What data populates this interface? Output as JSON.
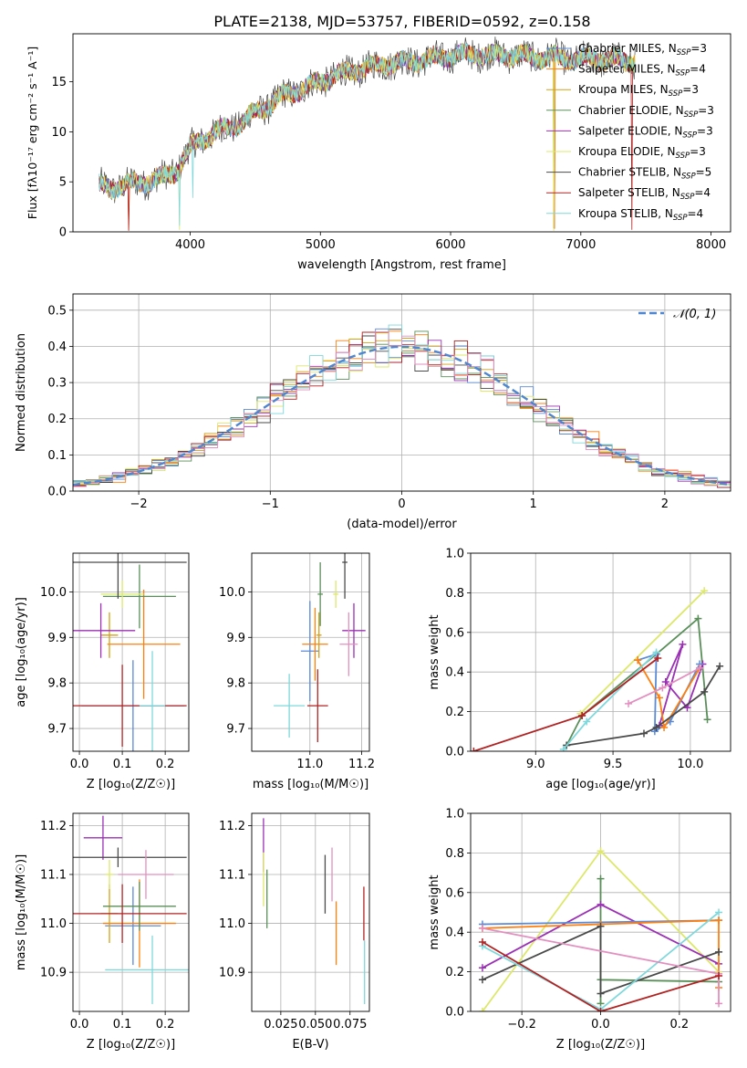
{
  "figure": {
    "title": "PLATE=2138, MJD=53757, FIBERID=0592, z=0.158"
  },
  "colors": {
    "Chabrier MILES": "#5b8bd6",
    "Salpeter MILES": "#ff7f0e",
    "Kroupa MILES": "#d4a017",
    "Chabrier ELODIE": "#5a8f5a",
    "Salpeter ELODIE": "#9b30b5",
    "Kroupa ELODIE": "#dde86a",
    "Chabrier STELIB": "#4a4a4a",
    "Salpeter STELIB": "#b22222",
    "Kroupa STELIB": "#7fd8dc",
    "pink": "#e38fc0",
    "gauss": "#4f86cf"
  },
  "chart_data": [
    {
      "id": "spectrum",
      "type": "line",
      "title": "PLATE=2138, MJD=53757, FIBERID=0592, z=0.158",
      "xlabel": "wavelength [Angstrom, rest frame]",
      "ylabel": "Flux [fλ10⁻¹⁷ erg cm⁻² s⁻¹ A⁻¹]",
      "xlim": [
        3100,
        8150
      ],
      "ylim": [
        0,
        19.8
      ],
      "xticks": [
        4000,
        5000,
        6000,
        7000,
        8000
      ],
      "yticks": [
        0,
        5,
        10,
        15
      ],
      "grid": false,
      "legend_position": "upper-right",
      "legend": [
        "Chabrier MILES, N_SSP=3",
        "Salpeter MILES, N_SSP=4",
        "Kroupa MILES, N_SSP=3",
        "Chabrier ELODIE, N_SSP=3",
        "Salpeter ELODIE, N_SSP=3",
        "Kroupa ELODIE, N_SSP=3",
        "Chabrier STELIB, N_SSP=5",
        "Salpeter STELIB, N_SSP=4",
        "Kroupa STELIB, N_SSP=4"
      ],
      "envelope": {
        "x": [
          3300,
          3400,
          3500,
          3600,
          3700,
          3800,
          3900,
          4000,
          4100,
          4200,
          4300,
          4400,
          4500,
          4600,
          4700,
          4800,
          4900,
          5000,
          5100,
          5200,
          5300,
          5400,
          5500,
          5600,
          5700,
          5800,
          5900,
          6000,
          6100,
          6200,
          6300,
          6400,
          6500,
          6600,
          6700,
          6800,
          6900,
          7000,
          7100,
          7200,
          7300,
          7400
        ],
        "y": [
          4.6,
          4.4,
          4.7,
          4.9,
          5.1,
          5.5,
          6.2,
          8.4,
          9.3,
          10.0,
          10.4,
          11.0,
          12.0,
          12.6,
          13.5,
          14.0,
          14.5,
          15.0,
          15.6,
          15.9,
          16.2,
          16.5,
          16.8,
          16.9,
          17.0,
          17.2,
          17.4,
          17.6,
          17.7,
          17.8,
          17.6,
          17.7,
          17.6,
          17.5,
          17.4,
          17.5,
          17.3,
          17.2,
          17.4,
          17.1,
          17.2,
          17.0
        ]
      }
    },
    {
      "id": "residuals",
      "type": "histogram",
      "xlabel": "(data-model)/error",
      "ylabel": "Normed distribution",
      "xlim": [
        -2.5,
        2.5
      ],
      "ylim": [
        0,
        0.545
      ],
      "xticks": [
        -2,
        -1,
        0,
        1,
        2
      ],
      "yticks": [
        0.0,
        0.1,
        0.2,
        0.3,
        0.4,
        0.5
      ],
      "grid": true,
      "legend": [
        "𝒩(0, 1)"
      ],
      "legend_position": "upper-right",
      "bin_width": 0.1,
      "gaussian": {
        "mean": 0,
        "sigma": 1
      }
    },
    {
      "id": "age-vs-Z",
      "type": "errorbar",
      "xlabel": "Z [log₁₀(Z/Z☉)]",
      "ylabel": "age [log₁₀(age/yr)]",
      "xlim": [
        -0.015,
        0.255
      ],
      "ylim": [
        9.65,
        10.085
      ],
      "xticks": [
        0.0,
        0.1,
        0.2
      ],
      "yticks": [
        9.7,
        9.8,
        9.9,
        10.0
      ],
      "grid": true,
      "points": [
        {
          "x": 0.125,
          "y": 9.75,
          "xerr": 0.12,
          "yerr": 0.1,
          "c": "Chabrier MILES"
        },
        {
          "x": 0.15,
          "y": 9.885,
          "xerr": 0.085,
          "yerr": 0.12,
          "c": "Salpeter MILES"
        },
        {
          "x": 0.07,
          "y": 9.905,
          "xerr": 0.02,
          "yerr": 0.05,
          "c": "Kroupa MILES"
        },
        {
          "x": 0.14,
          "y": 9.99,
          "xerr": 0.085,
          "yerr": 0.07,
          "c": "Chabrier ELODIE"
        },
        {
          "x": 0.05,
          "y": 9.915,
          "xerr": 0.08,
          "yerr": 0.06,
          "c": "Salpeter ELODIE"
        },
        {
          "x": 0.1,
          "y": 9.995,
          "xerr": 0.05,
          "yerr": 0.03,
          "c": "Kroupa ELODIE"
        },
        {
          "x": 0.09,
          "y": 10.065,
          "xerr": 0.16,
          "yerr": 0.08,
          "c": "Chabrier STELIB"
        },
        {
          "x": 0.1,
          "y": 9.75,
          "xerr": 0.15,
          "yerr": 0.09,
          "c": "Salpeter STELIB"
        },
        {
          "x": 0.17,
          "y": 9.75,
          "xerr": 0.03,
          "yerr": 0.12,
          "c": "Kroupa STELIB"
        }
      ]
    },
    {
      "id": "age-vs-mass",
      "type": "errorbar",
      "xlabel": "mass [log₁₀(M/M☉)]",
      "ylabel": "",
      "xlim": [
        10.775,
        11.23
      ],
      "ylim": [
        9.65,
        10.085
      ],
      "xticks": [
        11.0,
        11.2
      ],
      "yticks": [
        9.7,
        9.8,
        9.9,
        10.0
      ],
      "grid": true,
      "points": [
        {
          "x": 11.0,
          "y": 9.87,
          "xerr": 0.035,
          "yerr": 0.11,
          "c": "Chabrier MILES"
        },
        {
          "x": 11.02,
          "y": 9.885,
          "xerr": 0.05,
          "yerr": 0.08,
          "c": "Salpeter MILES"
        },
        {
          "x": 11.035,
          "y": 9.905,
          "xerr": 0.01,
          "yerr": 0.05,
          "c": "Kroupa MILES"
        },
        {
          "x": 11.04,
          "y": 9.995,
          "xerr": 0.01,
          "yerr": 0.07,
          "c": "Chabrier ELODIE"
        },
        {
          "x": 11.17,
          "y": 9.915,
          "xerr": 0.045,
          "yerr": 0.06,
          "c": "Salpeter ELODIE"
        },
        {
          "x": 11.1,
          "y": 9.995,
          "xerr": 0.01,
          "yerr": 0.03,
          "c": "Kroupa ELODIE"
        },
        {
          "x": 11.135,
          "y": 10.065,
          "xerr": 0.01,
          "yerr": 0.08,
          "c": "Chabrier STELIB"
        },
        {
          "x": 11.03,
          "y": 9.75,
          "xerr": 0.04,
          "yerr": 0.08,
          "c": "Salpeter STELIB"
        },
        {
          "x": 10.92,
          "y": 9.75,
          "xerr": 0.06,
          "yerr": 0.07,
          "c": "Kroupa STELIB"
        },
        {
          "x": 11.15,
          "y": 9.885,
          "xerr": 0.035,
          "yerr": 0.07,
          "c": "pink"
        }
      ]
    },
    {
      "id": "weight-vs-age",
      "type": "line",
      "xlabel": "age [log₁₀(age/yr)]",
      "ylabel": "mass weight",
      "xlim": [
        8.58,
        10.26
      ],
      "ylim": [
        0,
        1.0
      ],
      "xticks": [
        9.0,
        9.5,
        10.0
      ],
      "yticks": [
        0.0,
        0.2,
        0.4,
        0.6,
        0.8,
        1.0
      ],
      "grid": true,
      "series": [
        {
          "c": "Kroupa ELODIE",
          "x": [
            9.29,
            10.09
          ],
          "y": [
            0.19,
            0.81
          ]
        },
        {
          "c": "Chabrier ELODIE",
          "x": [
            9.2,
            9.3,
            9.78,
            10.05,
            10.11
          ],
          "y": [
            0.03,
            0.18,
            0.49,
            0.67,
            0.16
          ]
        },
        {
          "c": "Salpeter ELODIE",
          "x": [
            9.8,
            9.95,
            9.84,
            9.98,
            10.08
          ],
          "y": [
            0.13,
            0.54,
            0.35,
            0.22,
            0.44
          ]
        },
        {
          "c": "Chabrier MILES",
          "x": [
            9.66,
            9.78,
            9.77,
            9.87,
            10.06
          ],
          "y": [
            0.46,
            0.49,
            0.1,
            0.15,
            0.44
          ]
        },
        {
          "c": "Salpeter MILES",
          "x": [
            9.66,
            9.8,
            9.83,
            10.06
          ],
          "y": [
            0.46,
            0.27,
            0.12,
            0.42
          ]
        },
        {
          "c": "Chabrier STELIB",
          "x": [
            9.2,
            9.7,
            9.78,
            10.09,
            10.19
          ],
          "y": [
            0.03,
            0.09,
            0.12,
            0.3,
            0.43
          ]
        },
        {
          "c": "Kroupa STELIB",
          "x": [
            9.18,
            9.33,
            9.78
          ],
          "y": [
            0.01,
            0.15,
            0.5
          ]
        },
        {
          "c": "pink",
          "x": [
            9.6,
            9.82,
            10.06
          ],
          "y": [
            0.24,
            0.32,
            0.42
          ]
        },
        {
          "c": "Salpeter STELIB",
          "x": [
            8.6,
            9.3,
            9.79
          ],
          "y": [
            0.0,
            0.18,
            0.47
          ]
        }
      ]
    },
    {
      "id": "mass-vs-Z",
      "type": "errorbar",
      "xlabel": "Z [log₁₀(Z/Z☉)]",
      "ylabel": "mass [log₁₀(M/M☉)]",
      "xlim": [
        -0.015,
        0.255
      ],
      "ylim": [
        10.82,
        11.225
      ],
      "xticks": [
        0.0,
        0.1,
        0.2
      ],
      "yticks": [
        10.9,
        11.0,
        11.1,
        11.2
      ],
      "grid": true,
      "points": [
        {
          "x": 0.125,
          "y": 10.995,
          "xerr": 0.065,
          "yerr": 0.08,
          "c": "Chabrier MILES"
        },
        {
          "x": 0.14,
          "y": 11.0,
          "xerr": 0.085,
          "yerr": 0.09,
          "c": "Salpeter MILES"
        },
        {
          "x": 0.07,
          "y": 11.02,
          "xerr": 0.02,
          "yerr": 0.06,
          "c": "Kroupa MILES"
        },
        {
          "x": 0.14,
          "y": 11.035,
          "xerr": 0.085,
          "yerr": 0.05,
          "c": "Chabrier ELODIE"
        },
        {
          "x": 0.055,
          "y": 11.175,
          "xerr": 0.045,
          "yerr": 0.045,
          "c": "Salpeter ELODIE"
        },
        {
          "x": 0.07,
          "y": 11.1,
          "xerr": 0.01,
          "yerr": 0.03,
          "c": "Kroupa ELODIE"
        },
        {
          "x": 0.09,
          "y": 11.135,
          "xerr": 0.16,
          "yerr": 0.02,
          "c": "Chabrier STELIB"
        },
        {
          "x": 0.1,
          "y": 11.02,
          "xerr": 0.15,
          "yerr": 0.06,
          "c": "Salpeter STELIB"
        },
        {
          "x": 0.17,
          "y": 10.905,
          "xerr": 0.11,
          "yerr": 0.07,
          "c": "Kroupa STELIB"
        },
        {
          "x": 0.155,
          "y": 11.1,
          "xerr": 0.065,
          "yerr": 0.05,
          "c": "pink"
        }
      ]
    },
    {
      "id": "mass-vs-EBV",
      "type": "errorbar",
      "xlabel": "E(B-V)",
      "ylabel": "",
      "xlim": [
        0.004,
        0.089
      ],
      "ylim": [
        10.82,
        11.225
      ],
      "xticks": [
        0.025,
        0.05,
        0.075
      ],
      "xtick_labels": [
        "0.025",
        "0.050",
        "0.075"
      ],
      "yticks": [
        10.9,
        11.0,
        11.1,
        11.2
      ],
      "grid": true,
      "points": [
        {
          "x": 0.0125,
          "y": 11.16,
          "xerr": 0.0,
          "yerr": 0.055,
          "c": "Salpeter ELODIE"
        },
        {
          "x": 0.0125,
          "y": 11.09,
          "xerr": 0.0,
          "yerr": 0.055,
          "c": "Kroupa ELODIE"
        },
        {
          "x": 0.015,
          "y": 11.05,
          "xerr": 0.0,
          "yerr": 0.06,
          "c": "Chabrier ELODIE"
        },
        {
          "x": 0.057,
          "y": 11.08,
          "xerr": 0.0,
          "yerr": 0.06,
          "c": "Chabrier STELIB"
        },
        {
          "x": 0.062,
          "y": 11.1,
          "xerr": 0.0,
          "yerr": 0.055,
          "c": "pink"
        },
        {
          "x": 0.065,
          "y": 10.98,
          "xerr": 0.0,
          "yerr": 0.065,
          "c": "Salpeter MILES"
        },
        {
          "x": 0.085,
          "y": 11.02,
          "xerr": 0.0,
          "yerr": 0.055,
          "c": "Salpeter STELIB"
        },
        {
          "x": 0.0855,
          "y": 10.9,
          "xerr": 0.0,
          "yerr": 0.065,
          "c": "Kroupa STELIB"
        }
      ]
    },
    {
      "id": "weight-vs-Z",
      "type": "line",
      "xlabel": "Z [log₁₀(Z/Z☉)]",
      "ylabel": "mass weight",
      "xlim": [
        -0.33,
        0.33
      ],
      "ylim": [
        0,
        1.0
      ],
      "xticks": [
        -0.2,
        0.0,
        0.2
      ],
      "yticks": [
        0.0,
        0.2,
        0.4,
        0.6,
        0.8,
        1.0
      ],
      "grid": true,
      "series": [
        {
          "c": "Kroupa ELODIE",
          "x": [
            -0.3,
            0.0,
            0.3
          ],
          "y": [
            0.0,
            0.81,
            0.2
          ]
        },
        {
          "c": "Chabrier ELODIE",
          "x": [
            0.0,
            0.0,
            0.0,
            0.3
          ],
          "y": [
            0.67,
            0.04,
            0.16,
            0.15
          ]
        },
        {
          "c": "Salpeter ELODIE",
          "x": [
            -0.3,
            0.0,
            0.3
          ],
          "y": [
            0.22,
            0.54,
            0.24
          ]
        },
        {
          "c": "Chabrier MILES",
          "x": [
            -0.3,
            0.3
          ],
          "y": [
            0.44,
            0.46
          ]
        },
        {
          "c": "Salpeter MILES",
          "x": [
            -0.3,
            0.0,
            0.3,
            0.3
          ],
          "y": [
            0.42,
            0.44,
            0.46,
            0.12
          ]
        },
        {
          "c": "Chabrier STELIB",
          "x": [
            -0.3,
            0.0,
            0.0,
            0.3
          ],
          "y": [
            0.16,
            0.43,
            0.09,
            0.3
          ]
        },
        {
          "c": "Kroupa STELIB",
          "x": [
            -0.3,
            0.0,
            0.3
          ],
          "y": [
            0.33,
            0.01,
            0.5
          ]
        },
        {
          "c": "pink",
          "x": [
            -0.3,
            0.3,
            0.3
          ],
          "y": [
            0.42,
            0.19,
            0.04
          ]
        },
        {
          "c": "Salpeter STELIB",
          "x": [
            -0.3,
            0.0,
            0.3
          ],
          "y": [
            0.35,
            0.0,
            0.18
          ]
        }
      ]
    }
  ]
}
